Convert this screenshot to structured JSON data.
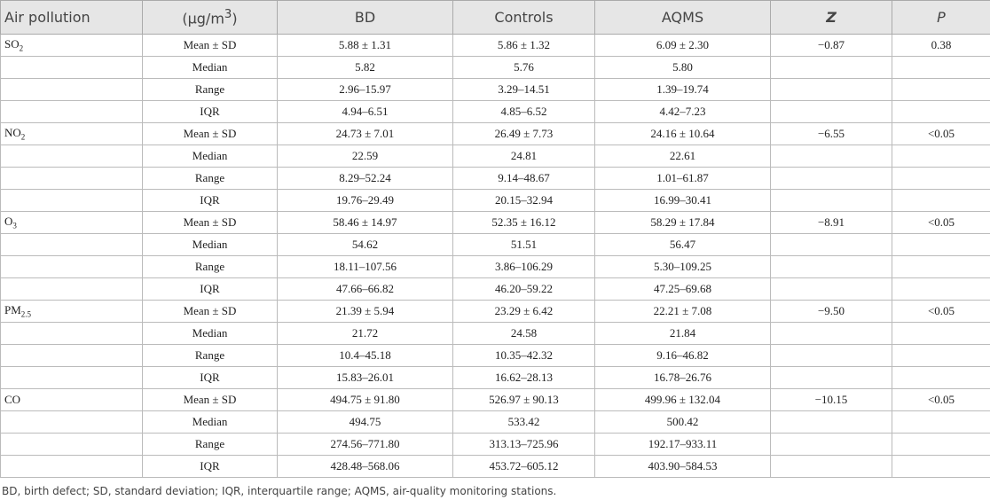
{
  "header": [
    "Air pollution",
    {
      "before": "(μg/m",
      "sup": "3",
      "after": ")"
    },
    "BD",
    "Controls",
    "AQMS",
    "Z",
    "P"
  ],
  "groups": [
    {
      "pollutant": {
        "base": "SO",
        "sub": "2"
      },
      "z": "−0.87",
      "p": "0.38",
      "rows": [
        [
          "Mean ± SD",
          "5.88 ± 1.31",
          "5.86 ± 1.32",
          "6.09 ± 2.30"
        ],
        [
          "Median",
          "5.82",
          "5.76",
          "5.80"
        ],
        [
          "Range",
          "2.96–15.97",
          "3.29–14.51",
          "1.39–19.74"
        ],
        [
          "IQR",
          "4.94–6.51",
          "4.85–6.52",
          "4.42–7.23"
        ]
      ]
    },
    {
      "pollutant": {
        "base": "NO",
        "sub": "2"
      },
      "z": "−6.55",
      "p": "<0.05",
      "rows": [
        [
          "Mean ± SD",
          "24.73 ± 7.01",
          "26.49 ± 7.73",
          "24.16 ± 10.64"
        ],
        [
          "Median",
          "22.59",
          "24.81",
          "22.61"
        ],
        [
          "Range",
          "8.29–52.24",
          "9.14–48.67",
          "1.01–61.87"
        ],
        [
          "IQR",
          "19.76–29.49",
          "20.15–32.94",
          "16.99–30.41"
        ]
      ]
    },
    {
      "pollutant": {
        "base": "O",
        "sub": "3"
      },
      "z": "−8.91",
      "p": "<0.05",
      "rows": [
        [
          "Mean ± SD",
          "58.46 ± 14.97",
          "52.35 ± 16.12",
          "58.29 ± 17.84"
        ],
        [
          "Median",
          "54.62",
          "51.51",
          "56.47"
        ],
        [
          "Range",
          "18.11–107.56",
          "3.86–106.29",
          "5.30–109.25"
        ],
        [
          "IQR",
          "47.66–66.82",
          "46.20–59.22",
          "47.25–69.68"
        ]
      ]
    },
    {
      "pollutant": {
        "base": "PM",
        "sub": "2.5"
      },
      "z": "−9.50",
      "p": "<0.05",
      "rows": [
        [
          "Mean ± SD",
          "21.39 ± 5.94",
          "23.29 ± 6.42",
          "22.21 ± 7.08"
        ],
        [
          "Median",
          "21.72",
          "24.58",
          "21.84"
        ],
        [
          "Range",
          "10.4–45.18",
          "10.35–42.32",
          "9.16–46.82"
        ],
        [
          "IQR",
          "15.83–26.01",
          "16.62–28.13",
          "16.78–26.76"
        ]
      ]
    },
    {
      "pollutant": "CO",
      "z": "−10.15",
      "p": "<0.05",
      "rows": [
        [
          "Mean ± SD",
          "494.75 ± 91.80",
          "526.97 ± 90.13",
          "499.96 ± 132.04"
        ],
        [
          "Median",
          "494.75",
          "533.42",
          "500.42"
        ],
        [
          "Range",
          "274.56–771.80",
          "313.13–725.96",
          "192.17–933.11"
        ],
        [
          "IQR",
          "428.48–568.06",
          "453.72–605.12",
          "403.90–584.53"
        ]
      ]
    }
  ],
  "footnote": "BD, birth defect; SD, standard deviation; IQR, interquartile range; AQMS, air-quality monitoring stations."
}
